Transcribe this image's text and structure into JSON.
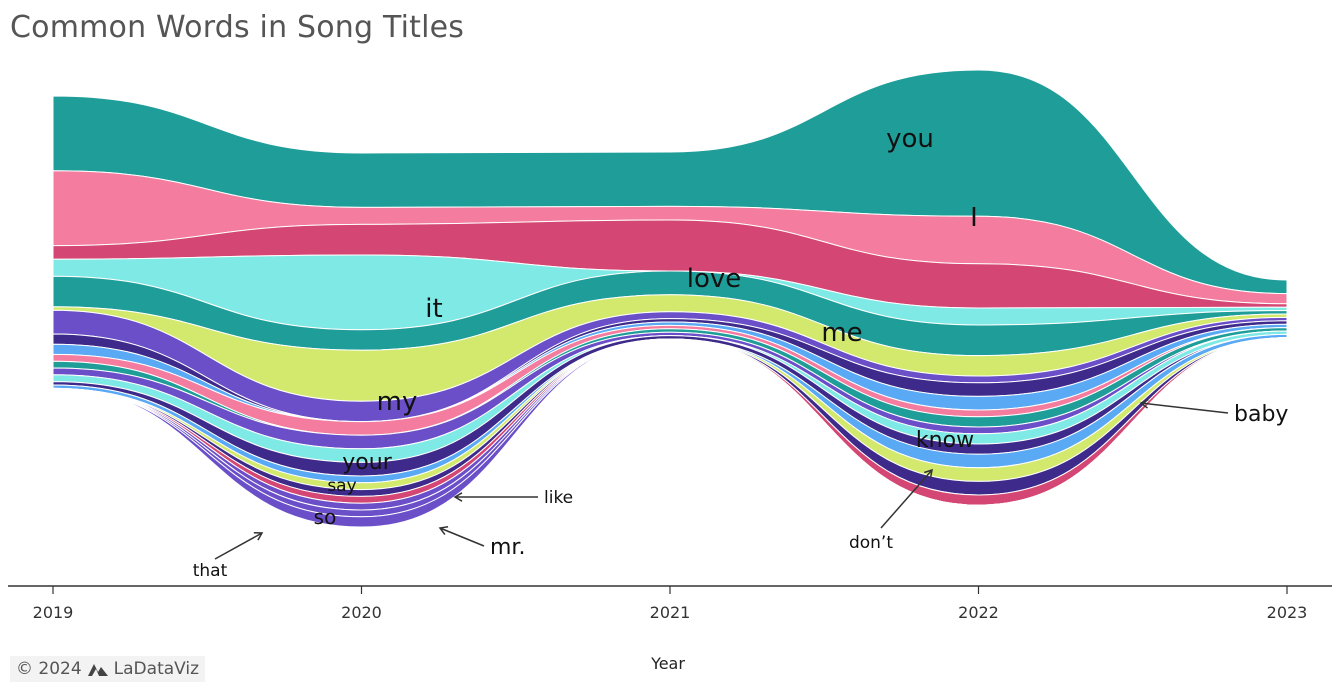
{
  "chart_data": {
    "type": "area",
    "title": "Common Words in Song Titles",
    "xlabel": "Year",
    "ylabel": "",
    "x": [
      2019,
      2020,
      2021,
      2022,
      2023
    ],
    "tick_labels": [
      "2019",
      "2020",
      "2021",
      "2022",
      "2023"
    ],
    "series": [
      {
        "name": "you",
        "values": [
          22,
          16,
          16,
          43,
          4
        ],
        "color": "#1f9e99"
      },
      {
        "name": "I",
        "values": [
          22,
          5,
          4,
          14,
          3
        ],
        "color": "#f47c9f"
      },
      {
        "name": "love",
        "values": [
          4,
          9,
          15,
          13,
          1
        ],
        "color": "#d44673"
      },
      {
        "name": "it",
        "values": [
          5,
          22,
          0,
          5,
          1
        ],
        "color": "#7fe9e6"
      },
      {
        "name": "me",
        "values": [
          9,
          6,
          7,
          9,
          1
        ],
        "color": "#1f9e99"
      },
      {
        "name": "my",
        "values": [
          1,
          15,
          5,
          6,
          1
        ],
        "color": "#d2e96e"
      },
      {
        "name": "your",
        "values": [
          7,
          6,
          2,
          2,
          1
        ],
        "color": "#6a4fc8"
      },
      {
        "name": "baby",
        "values": [
          3,
          0,
          1,
          4,
          1
        ],
        "color": "#3e2a8a"
      },
      {
        "name": "know",
        "values": [
          3,
          0,
          1,
          4,
          1
        ],
        "color": "#5aa9f5"
      },
      {
        "name": "say",
        "values": [
          2,
          4,
          1,
          2,
          0
        ],
        "color": "#f47c9f"
      },
      {
        "name": "don't",
        "values": [
          2,
          0,
          1,
          3,
          1
        ],
        "color": "#1f9e99"
      },
      {
        "name": "like",
        "values": [
          2,
          4,
          1,
          2,
          0
        ],
        "color": "#6a4fc8"
      },
      {
        "name": "so",
        "values": [
          2,
          4,
          0,
          3,
          1
        ],
        "color": "#7fe9e6"
      },
      {
        "name": "mr.",
        "values": [
          1,
          4,
          1,
          3,
          0
        ],
        "color": "#3e2a8a"
      },
      {
        "name": "that",
        "values": [
          1,
          2,
          0,
          4,
          1
        ],
        "color": "#5aa9f5"
      },
      {
        "name": "",
        "values": [
          0,
          2,
          0,
          4,
          0
        ],
        "color": "#d2e96e"
      },
      {
        "name": "",
        "values": [
          0,
          2,
          0,
          4,
          0
        ],
        "color": "#3e2a8a"
      },
      {
        "name": "",
        "values": [
          0,
          2,
          0,
          3,
          0
        ],
        "color": "#d44673"
      },
      {
        "name": "",
        "values": [
          0,
          2,
          0,
          0,
          0
        ],
        "color": "#6a4fc8"
      },
      {
        "name": "",
        "values": [
          0,
          2,
          0,
          0,
          0
        ],
        "color": "#6a4fc8"
      },
      {
        "name": "",
        "values": [
          0,
          3,
          0,
          0,
          0
        ],
        "color": "#6a4fc8"
      }
    ],
    "labels": [
      {
        "text": "you",
        "style": "inline"
      },
      {
        "text": "I",
        "style": "inline"
      },
      {
        "text": "love",
        "style": "inline"
      },
      {
        "text": "it",
        "style": "inline"
      },
      {
        "text": "me",
        "style": "inline"
      },
      {
        "text": "my",
        "style": "inline"
      },
      {
        "text": "your",
        "style": "inline"
      },
      {
        "text": "know",
        "style": "inline"
      },
      {
        "text": "say",
        "style": "inline"
      },
      {
        "text": "so",
        "style": "inline"
      },
      {
        "text": "baby",
        "style": "callout"
      },
      {
        "text": "like",
        "style": "callout"
      },
      {
        "text": "mr.",
        "style": "callout"
      },
      {
        "text": "that",
        "style": "callout"
      },
      {
        "text": "don’t",
        "style": "callout"
      }
    ]
  },
  "footer": {
    "copyright": "© 2024",
    "brand": "LaDataViz"
  }
}
